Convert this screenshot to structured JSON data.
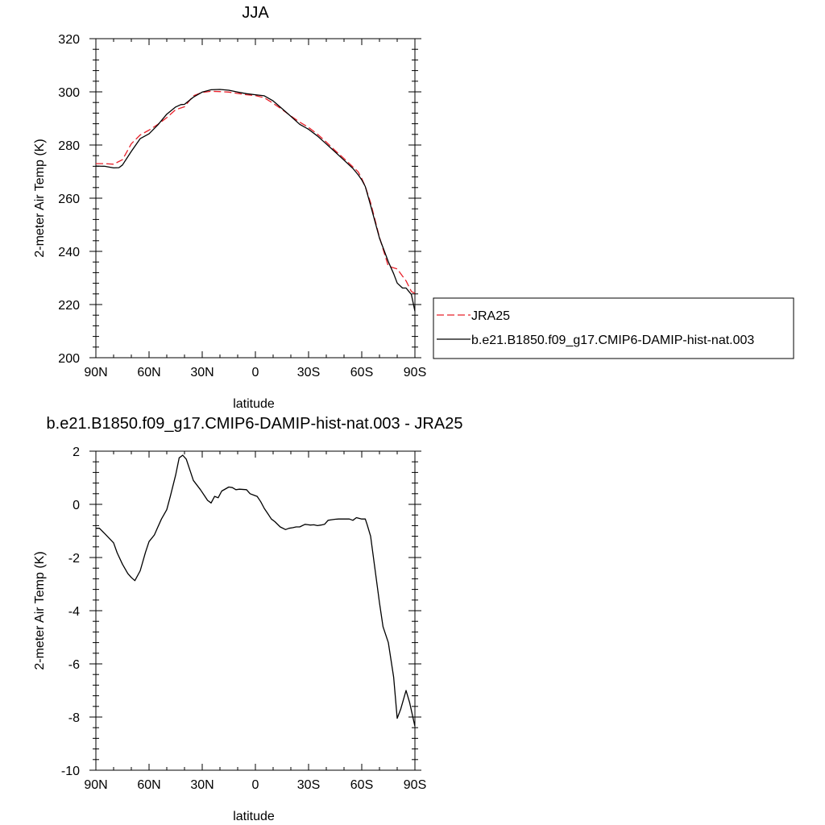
{
  "chart_data": [
    {
      "type": "line",
      "title": "JJA",
      "xlabel": "latitude",
      "ylabel": "2-meter Air Temp (K)",
      "xlim": [
        90,
        -90
      ],
      "ylim": [
        200,
        320
      ],
      "x_ticks": [
        90,
        60,
        30,
        0,
        -30,
        -60,
        -90
      ],
      "x_tick_labels": [
        "90N",
        "60N",
        "30N",
        "0",
        "30S",
        "60S",
        "90S"
      ],
      "y_ticks": [
        200,
        220,
        240,
        260,
        280,
        300,
        320
      ],
      "y_tick_labels": [
        "200",
        "220",
        "240",
        "260",
        "280",
        "300",
        "320"
      ],
      "legend_position": "right",
      "series": [
        {
          "name": "JRA25",
          "color": "#e8202a",
          "dash": "dashed",
          "x": [
            90,
            85,
            80,
            75,
            70,
            65,
            60,
            55,
            50,
            45,
            40,
            35,
            30,
            25,
            20,
            15,
            10,
            5,
            0,
            -5,
            -10,
            -15,
            -20,
            -25,
            -30,
            -35,
            -40,
            -45,
            -50,
            -55,
            -58,
            -60,
            -62,
            -65,
            -70,
            -75,
            -80,
            -83,
            -85,
            -88,
            -90
          ],
          "y": [
            273,
            273,
            272.8,
            274.5,
            280.5,
            283.8,
            285.6,
            287.8,
            290.3,
            293.3,
            294.4,
            298.5,
            299.8,
            300.2,
            300.1,
            299.9,
            299.4,
            298.9,
            298.6,
            297.8,
            295.7,
            293.4,
            290.9,
            288.6,
            286.6,
            284.1,
            281.1,
            277.9,
            274.9,
            271.8,
            269.9,
            267.4,
            264.4,
            258.3,
            245.3,
            234.4,
            233.4,
            230.7,
            228.9,
            224.9,
            224.2
          ]
        },
        {
          "name": "b.e21.B1850.f09_g17.CMIP6-DAMIP-hist-nat.003",
          "color": "#000000",
          "dash": "solid",
          "x": [
            90,
            85,
            80,
            77,
            75,
            70,
            65,
            60,
            55,
            50,
            45,
            42,
            40,
            35,
            30,
            25,
            20,
            15,
            10,
            5,
            0,
            -5,
            -10,
            -15,
            -20,
            -25,
            -30,
            -35,
            -40,
            -45,
            -50,
            -55,
            -58,
            -60,
            -62,
            -65,
            -70,
            -75,
            -78,
            -80,
            -83,
            -85,
            -88,
            -90
          ],
          "y": [
            272.1,
            272,
            271.4,
            271.5,
            272.5,
            277.6,
            282.4,
            284.2,
            287.6,
            291.6,
            294.3,
            295.2,
            295.3,
            298,
            299.9,
            300.8,
            300.9,
            300.6,
            299.9,
            299.3,
            298.9,
            298.5,
            296.6,
            293.7,
            290.8,
            287.8,
            285.9,
            283.4,
            280.4,
            277.4,
            274.3,
            271.2,
            268.8,
            266.9,
            264.4,
            257.3,
            245,
            236.1,
            231.6,
            228.1,
            226.2,
            226.2,
            223.8,
            217.5
          ]
        }
      ]
    },
    {
      "type": "line",
      "title": "b.e21.B1850.f09_g17.CMIP6-DAMIP-hist-nat.003 - JRA25",
      "xlabel": "latitude",
      "ylabel": "2-meter Air Temp (K)",
      "xlim": [
        90,
        -90
      ],
      "ylim": [
        -10,
        2
      ],
      "x_ticks": [
        90,
        60,
        30,
        0,
        -30,
        -60,
        -90
      ],
      "x_tick_labels": [
        "90N",
        "60N",
        "30N",
        "0",
        "30S",
        "60S",
        "90S"
      ],
      "y_ticks": [
        -10,
        -8,
        -6,
        -4,
        -2,
        0,
        2
      ],
      "y_tick_labels": [
        "-10",
        "-8",
        "-6",
        "-4",
        "-2",
        "0",
        "2"
      ],
      "series": [
        {
          "color": "#000000",
          "dash": "solid",
          "x": [
            90,
            88,
            85,
            80,
            78,
            75,
            72,
            70,
            68,
            65,
            62,
            60,
            57,
            55,
            53,
            50,
            48,
            45,
            43,
            41,
            39,
            37,
            35,
            31,
            27,
            25,
            23,
            21,
            19,
            15,
            13,
            11,
            9,
            5,
            3,
            1,
            -1,
            -3,
            -5,
            -7,
            -9,
            -11,
            -14,
            -17,
            -19,
            -21,
            -23,
            -25,
            -28,
            -31,
            -33,
            -35,
            -37,
            -39,
            -41,
            -43,
            -45,
            -47,
            -50,
            -53,
            -55,
            -57,
            -60,
            -62,
            -63,
            -65,
            -67,
            -70,
            -72,
            -75,
            -78,
            -80,
            -82,
            -85,
            -87,
            -90
          ],
          "y": [
            -0.9,
            -0.9,
            -1.1,
            -1.45,
            -1.82,
            -2.25,
            -2.6,
            -2.75,
            -2.87,
            -2.5,
            -1.8,
            -1.4,
            -1.15,
            -0.85,
            -0.55,
            -0.2,
            0.3,
            1.1,
            1.75,
            1.85,
            1.7,
            1.3,
            0.9,
            0.55,
            0.15,
            0.05,
            0.3,
            0.25,
            0.5,
            0.65,
            0.63,
            0.55,
            0.57,
            0.55,
            0.4,
            0.35,
            0.3,
            0.1,
            -0.15,
            -0.35,
            -0.55,
            -0.65,
            -0.85,
            -0.95,
            -0.9,
            -0.88,
            -0.85,
            -0.85,
            -0.75,
            -0.78,
            -0.77,
            -0.8,
            -0.78,
            -0.75,
            -0.6,
            -0.58,
            -0.56,
            -0.55,
            -0.55,
            -0.55,
            -0.6,
            -0.5,
            -0.55,
            -0.55,
            -0.75,
            -1.2,
            -2.2,
            -3.7,
            -4.6,
            -5.2,
            -6.5,
            -8.05,
            -7.7,
            -7,
            -7.45,
            -8.35
          ]
        }
      ]
    }
  ]
}
